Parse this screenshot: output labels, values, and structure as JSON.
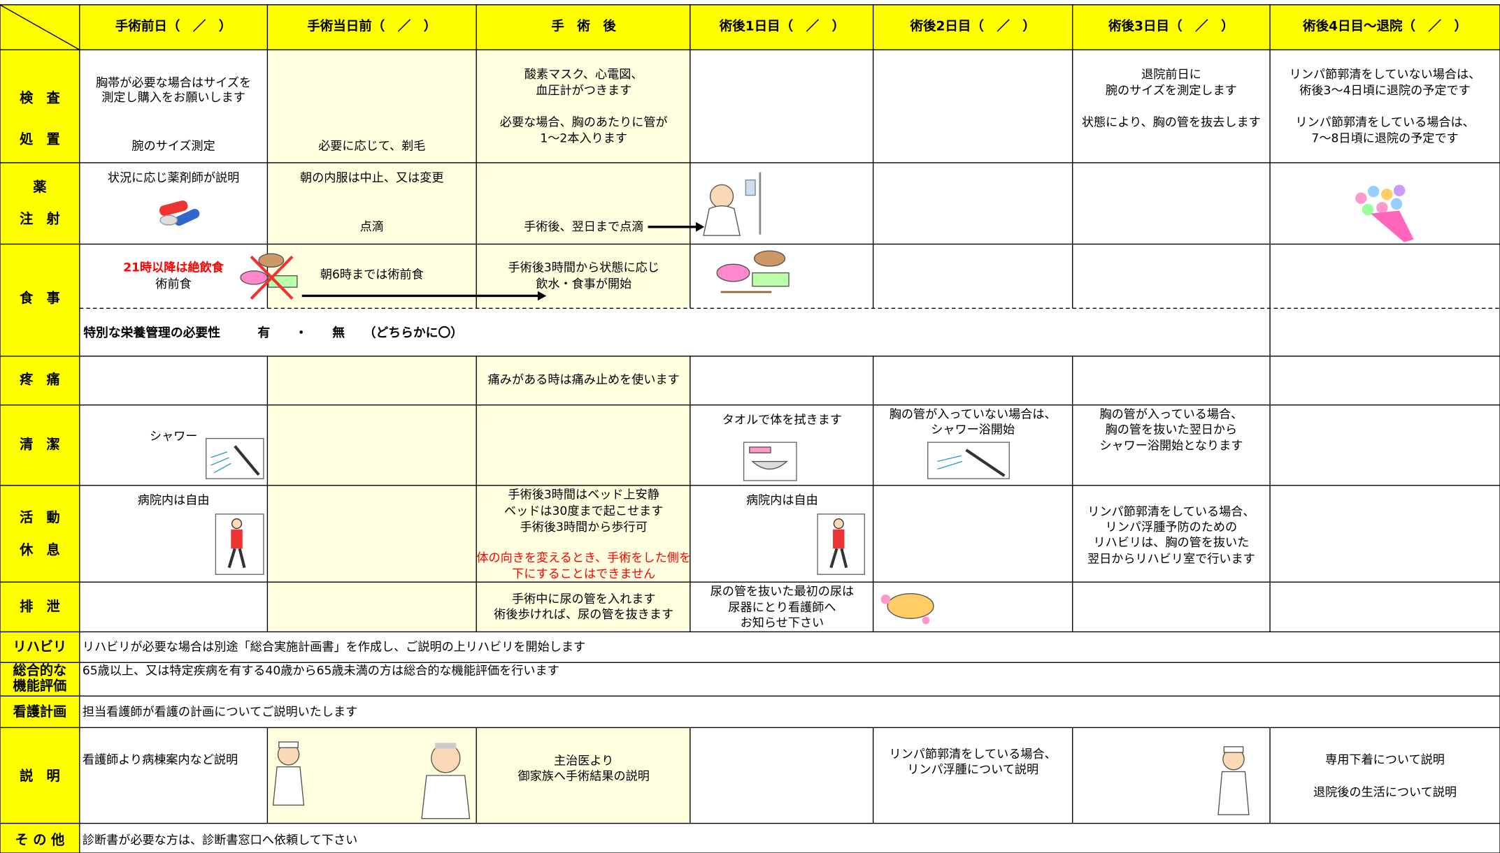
{
  "header": {
    "columns": [
      "手術前日（　／　）",
      "手術当日前（　／　）",
      "手　術　後",
      "術後1日目（　／　）",
      "術後2日目（　／　）",
      "術後3日目（　／　）",
      "術後4日目～退院（　／　）"
    ]
  },
  "rows": [
    {
      "label": [
        "検　査",
        "処　置"
      ],
      "cells": [
        [
          "胸帯が必要な場合はサイズを",
          "測定し購入をお願いします",
          "腕のサイズ測定"
        ],
        [
          "必要に応じて、剃毛"
        ],
        [
          "酸素マスク、心電図、",
          "血圧計がつきます",
          "必要な場合、胸のあたりに管が",
          "1～2本入ります"
        ],
        null,
        null,
        [
          "退院前日に",
          "腕のサイズを測定します",
          "状態により、胸の管を抜去します"
        ],
        [
          "リンパ節郭清をしていない場合は、",
          "術後3～4日頃に退院の予定です",
          "リンパ節郭清をしている場合は、",
          "7～8日頃に退院の予定です"
        ]
      ]
    },
    {
      "label": [
        "薬",
        "注　射"
      ],
      "cells": [
        [
          "状況に応じ薬剤師が説明"
        ],
        [
          "朝の内服は中止、又は変更",
          "点滴"
        ],
        [
          "手術後、翌日まで点滴"
        ],
        null,
        null,
        null,
        null
      ]
    },
    {
      "label": [
        "食　事"
      ],
      "cells": [
        {
          "warning": [
            "21時以降は絶飲食"
          ],
          "text": [
            "術前食"
          ]
        },
        [
          "朝6時までは術前食"
        ],
        [
          "手術後3時間から状態に応じ",
          "飲水・食事が開始"
        ],
        null,
        null,
        null,
        null
      ],
      "nutrition": "特別な栄養管理の必要性　　　有　　・　　無　　（どちらかに〇）"
    },
    {
      "label": [
        "疼　痛"
      ],
      "cells": [
        null,
        null,
        [
          "痛みがある時は痛み止めを使います"
        ],
        null,
        null,
        null,
        null
      ]
    },
    {
      "label": [
        "清　潔"
      ],
      "cells": [
        [
          "シャワー"
        ],
        null,
        null,
        [
          "タオルで体を拭きます"
        ],
        [
          "胸の管が入っていない場合は、",
          "シャワー浴開始"
        ],
        [
          "胸の管が入っている場合、",
          "胸の管を抜いた翌日から",
          "シャワー浴開始となります"
        ],
        null
      ]
    },
    {
      "label": [
        "活　動",
        "休　息"
      ],
      "cells": [
        [
          "病院内は自由"
        ],
        null,
        {
          "text": [
            "手術後3時間はベッド上安静",
            "ベッドは30度まで起こせます",
            "手術後3時間から歩行可"
          ],
          "warning": [
            "体の向きを変えるとき、手術をした側を",
            "下にすることはできません"
          ]
        },
        [
          "病院内は自由"
        ],
        null,
        [
          "リンパ節郭清をしている場合、",
          "リンパ浮腫予防のための",
          "リハビリは、胸の管を抜いた",
          "翌日からリハビリ室で行います"
        ],
        null
      ]
    },
    {
      "label": [
        "排　泄"
      ],
      "cells": [
        null,
        null,
        [
          "手術中に尿の管を入れます",
          "術後歩ければ、尿の管を抜きます"
        ],
        [
          "尿の管を抜いた最初の尿は",
          "尿器にとり看護師へ",
          "お知らせ下さい"
        ],
        null,
        null,
        null
      ]
    },
    {
      "label": [
        "リハビリ"
      ],
      "text": "リハビリが必要な場合は別途「総合実施計画書」を作成し、ご説明の上リハビリを開始します"
    },
    {
      "label": [
        "総合的な",
        "機能評価"
      ],
      "text": "65歳以上、又は特定疾病を有する40歳から65歳未満の方は総合的な機能評価を行います"
    },
    {
      "label": [
        "看護計画"
      ],
      "text": "担当看護師が看護の計画についてご説明いたします"
    },
    {
      "label": [
        "説　明"
      ],
      "cells": [
        [
          "看護師より病棟案内など説明"
        ],
        null,
        [
          "主治医より",
          "御家族へ手術結果の説明"
        ],
        null,
        [
          "リンパ節郭清をしている場合、",
          "リンパ浮腫について説明"
        ],
        null,
        [
          "専用下着について説明",
          "退院後の生活について説明"
        ]
      ]
    },
    {
      "label": [
        "そ の 他"
      ],
      "text": "診断書が必要な方は、診断書窓口へ依頼して下さい"
    }
  ]
}
